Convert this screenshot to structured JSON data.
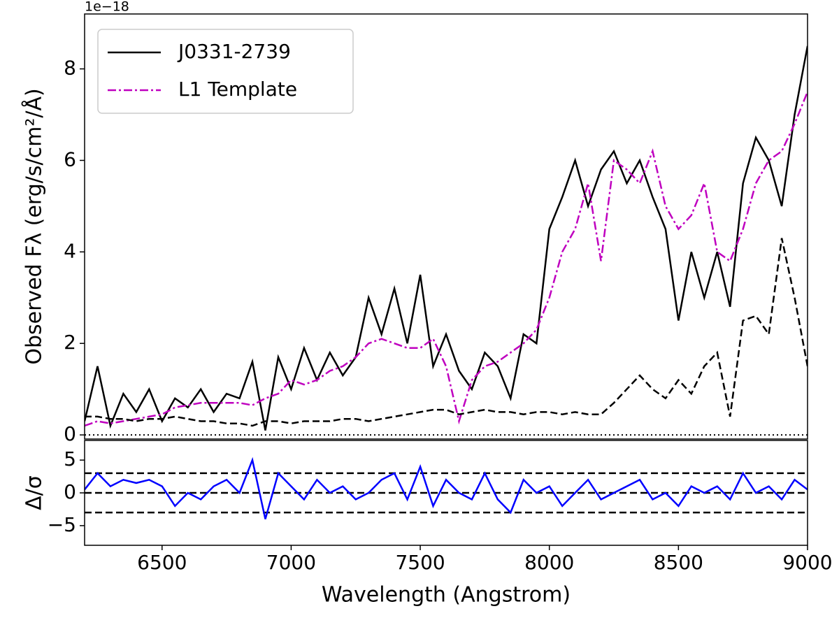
{
  "chart_data": [
    {
      "type": "line",
      "y_offset_label": "1e−18",
      "y_label": "Observed Fλ (erg/s/cm²/Å)",
      "x": [
        6200,
        6250,
        6300,
        6350,
        6400,
        6450,
        6500,
        6550,
        6600,
        6650,
        6700,
        6750,
        6800,
        6850,
        6900,
        6950,
        7000,
        7050,
        7100,
        7150,
        7200,
        7250,
        7300,
        7350,
        7400,
        7450,
        7500,
        7550,
        7600,
        7650,
        7700,
        7750,
        7800,
        7850,
        7900,
        7950,
        8000,
        8050,
        8100,
        8150,
        8200,
        8250,
        8300,
        8350,
        8400,
        8450,
        8500,
        8550,
        8600,
        8650,
        8700,
        8750,
        8800,
        8850,
        8900,
        8950,
        9000
      ],
      "series": [
        {
          "name": "J0331-2739",
          "color": "#000000",
          "style": "solid",
          "values": [
            0.3,
            1.5,
            0.2,
            0.9,
            0.5,
            1.0,
            0.3,
            0.8,
            0.6,
            1.0,
            0.5,
            0.9,
            0.8,
            1.6,
            0.1,
            1.7,
            1.0,
            1.9,
            1.2,
            1.8,
            1.3,
            1.7,
            3.0,
            2.2,
            3.2,
            2.0,
            3.5,
            1.5,
            2.2,
            1.4,
            1.0,
            1.8,
            1.5,
            0.8,
            2.2,
            2.0,
            4.5,
            5.2,
            6.0,
            5.0,
            5.8,
            6.2,
            5.5,
            6.0,
            5.2,
            4.5,
            2.5,
            4.0,
            3.0,
            4.0,
            2.8,
            5.5,
            6.5,
            6.0,
            5.0,
            7.0,
            8.5
          ]
        },
        {
          "name": "L1 Template",
          "color": "#bf00bf",
          "style": "dashdot",
          "values": [
            0.2,
            0.3,
            0.25,
            0.3,
            0.35,
            0.4,
            0.45,
            0.6,
            0.65,
            0.7,
            0.7,
            0.7,
            0.7,
            0.65,
            0.8,
            0.9,
            1.2,
            1.1,
            1.2,
            1.4,
            1.5,
            1.7,
            2.0,
            2.1,
            2.0,
            1.9,
            1.9,
            2.1,
            1.5,
            0.3,
            1.2,
            1.5,
            1.6,
            1.8,
            2.0,
            2.3,
            3.0,
            4.0,
            4.5,
            5.5,
            3.8,
            6.0,
            5.8,
            5.5,
            6.2,
            5.0,
            4.5,
            4.8,
            5.5,
            4.0,
            3.8,
            4.5,
            5.5,
            6.0,
            6.2,
            6.8,
            7.5
          ]
        },
        {
          "color": "#000000",
          "style": "dashed",
          "values": [
            0.4,
            0.4,
            0.35,
            0.35,
            0.3,
            0.35,
            0.35,
            0.4,
            0.35,
            0.3,
            0.3,
            0.25,
            0.25,
            0.2,
            0.3,
            0.3,
            0.25,
            0.3,
            0.3,
            0.3,
            0.35,
            0.35,
            0.3,
            0.35,
            0.4,
            0.45,
            0.5,
            0.55,
            0.55,
            0.45,
            0.5,
            0.55,
            0.5,
            0.5,
            0.45,
            0.5,
            0.5,
            0.45,
            0.5,
            0.45,
            0.45,
            0.7,
            1.0,
            1.3,
            1.0,
            0.8,
            1.2,
            0.9,
            1.5,
            1.8,
            0.4,
            2.5,
            2.6,
            2.2,
            4.3,
            3.0,
            1.5
          ]
        }
      ],
      "reference_lines": [
        {
          "y": 0,
          "style": "dotted"
        }
      ],
      "xlim": [
        6200,
        9000
      ],
      "ylim": [
        -0.09,
        9.2
      ],
      "yticks": [
        0,
        2,
        4,
        6,
        8
      ],
      "legend": "upper left"
    },
    {
      "type": "line",
      "x_label": "Wavelength (Angstrom)",
      "y_label": "Δ/σ",
      "x": [
        6200,
        6250,
        6300,
        6350,
        6400,
        6450,
        6500,
        6550,
        6600,
        6650,
        6700,
        6750,
        6800,
        6850,
        6900,
        6950,
        7000,
        7050,
        7100,
        7150,
        7200,
        7250,
        7300,
        7350,
        7400,
        7450,
        7500,
        7550,
        7600,
        7650,
        7700,
        7750,
        7800,
        7850,
        7900,
        7950,
        8000,
        8050,
        8100,
        8150,
        8200,
        8250,
        8300,
        8350,
        8400,
        8450,
        8500,
        8550,
        8600,
        8650,
        8700,
        8750,
        8800,
        8850,
        8900,
        8950,
        9000
      ],
      "series": [
        {
          "color": "#0000ff",
          "style": "solid",
          "values": [
            0.5,
            3,
            1,
            2,
            1.5,
            2,
            1,
            -2,
            0,
            -1,
            1,
            2,
            0,
            5,
            -4,
            3,
            1,
            -1,
            2,
            0,
            1,
            -1,
            0,
            2,
            3,
            -1,
            4,
            -2,
            2,
            0,
            -1,
            3,
            -1,
            -3,
            2,
            0,
            1,
            -2,
            0,
            2,
            -1,
            0,
            1,
            2,
            -1,
            0,
            -2,
            1,
            0,
            1,
            -1,
            3,
            0,
            1,
            -1,
            2,
            0.5
          ]
        }
      ],
      "reference_lines": [
        {
          "y": 3,
          "style": "dashed"
        },
        {
          "y": 0,
          "style": "dashed"
        },
        {
          "y": -3,
          "style": "dashed"
        }
      ],
      "xlim": [
        6200,
        9000
      ],
      "ylim": [
        -8,
        8
      ],
      "xticks": [
        6500,
        7000,
        7500,
        8000,
        8500,
        9000
      ],
      "yticks": [
        {
          "value": -5,
          "label": "−5"
        },
        0,
        5
      ]
    }
  ]
}
